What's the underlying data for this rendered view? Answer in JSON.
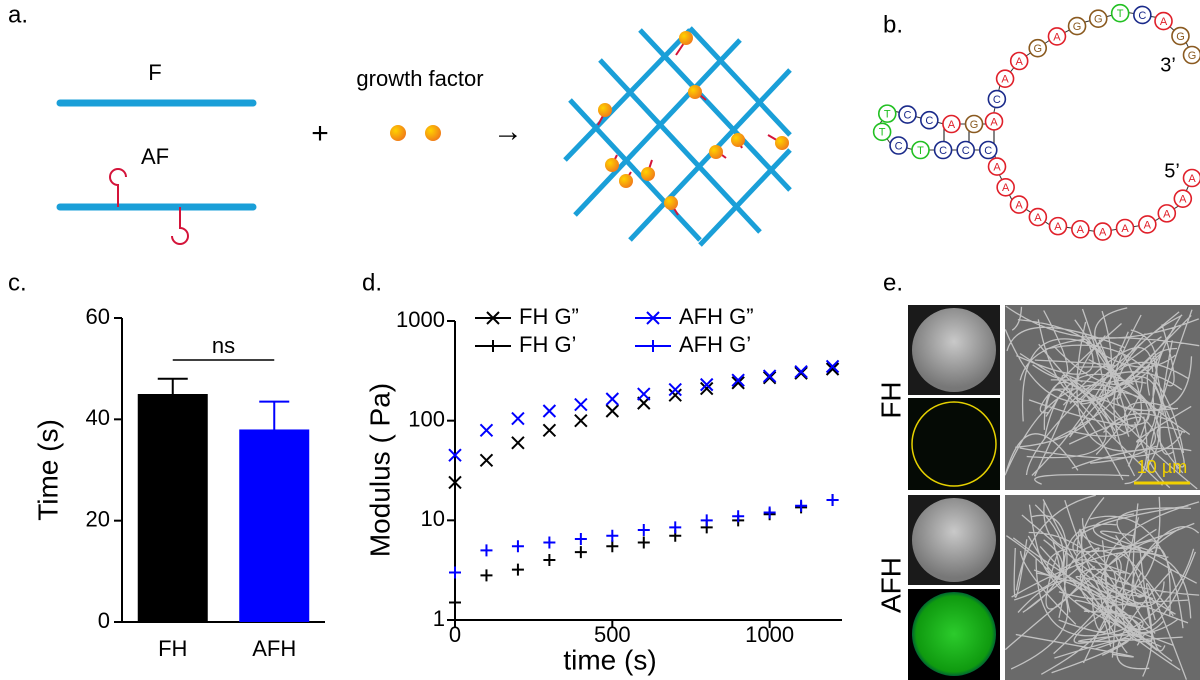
{
  "panel_labels": [
    "a.",
    "b.",
    "c.",
    "d.",
    "e."
  ],
  "diagram_a": {
    "fiber_labels": [
      "F",
      "AF"
    ],
    "plus": "+",
    "growth_factor": "growth factor",
    "arrow": "→"
  },
  "diagram_b": {
    "sequence": [
      "A",
      "A",
      "A",
      "A",
      "A",
      "A",
      "A",
      "A",
      "A",
      "A",
      "A",
      "A",
      "C",
      "C",
      "C",
      "T",
      "C",
      "T",
      "T",
      "C",
      "C",
      "A",
      "G",
      "A",
      "C",
      "A",
      "A",
      "G",
      "A",
      "G",
      "G",
      "T",
      "C",
      "A",
      "G",
      "G"
    ],
    "end_labels": [
      "5’",
      "3’"
    ]
  },
  "images_e": {
    "row_labels": [
      "FH",
      "AFH"
    ],
    "scale_bar": "10 µm"
  },
  "chart_data": [
    {
      "type": "bar",
      "ylabel": "Time (s)",
      "annotation": "ns",
      "categories": [
        "FH",
        "AFH"
      ],
      "values": [
        45,
        38
      ],
      "errors": [
        3,
        5.5
      ],
      "colors": [
        "#000000",
        "#0000ff"
      ],
      "ylim": [
        0,
        60
      ],
      "yticks": [
        0,
        20,
        40,
        60
      ]
    },
    {
      "type": "scatter",
      "xlabel": "time (s)",
      "ylabel": "Modulus ( Pa)",
      "log_y": true,
      "xlim": [
        0,
        1230
      ],
      "xticks": [
        0,
        500,
        1000
      ],
      "ylim": [
        1,
        1000
      ],
      "yticks": [
        1,
        10,
        100,
        1000
      ],
      "x": [
        0,
        100,
        200,
        300,
        400,
        500,
        600,
        700,
        800,
        900,
        1000,
        1100,
        1200
      ],
      "series": [
        {
          "name": "FH G”",
          "color": "#000000",
          "marker": "x",
          "values": [
            24,
            40,
            60,
            80,
            100,
            125,
            150,
            180,
            210,
            240,
            270,
            300,
            330
          ]
        },
        {
          "name": "AFH G”",
          "color": "#0000ff",
          "marker": "x",
          "values": [
            45,
            80,
            105,
            125,
            145,
            165,
            185,
            205,
            230,
            255,
            280,
            310,
            350
          ]
        },
        {
          "name": "FH G’",
          "color": "#000000",
          "marker": "+",
          "values": [
            1.5,
            2.8,
            3.2,
            4,
            4.8,
            5.5,
            6,
            7,
            8.5,
            10,
            11.5,
            13.5,
            16
          ]
        },
        {
          "name": "AFH G’",
          "color": "#0000ff",
          "marker": "+",
          "values": [
            3,
            5,
            5.5,
            6,
            6.5,
            7,
            8,
            8.5,
            10,
            11,
            12,
            14,
            16
          ]
        }
      ]
    }
  ]
}
